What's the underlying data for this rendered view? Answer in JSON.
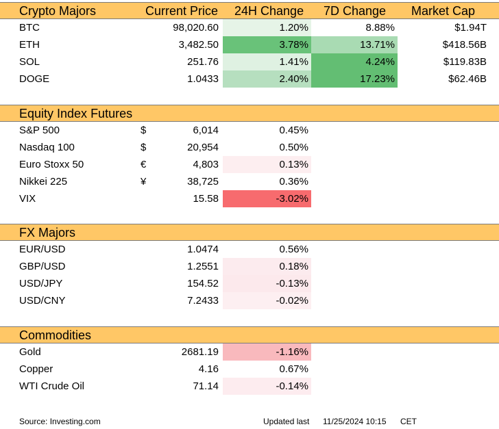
{
  "crypto": {
    "headers": {
      "name": "Crypto Majors",
      "price": "Current Price",
      "change24": "24H Change",
      "change7d": "7D Change",
      "mcap": "Market Cap"
    },
    "header_color": "#ffc766",
    "rows": [
      {
        "name": "BTC",
        "price": "98,020.60",
        "change24": "1.20%",
        "bg24": "#e6f4e7",
        "change7d": "8.88%",
        "bg7d": "#ffffff",
        "mcap": "$1.94T"
      },
      {
        "name": "ETH",
        "price": "3,482.50",
        "change24": "3.78%",
        "bg24": "#69c279",
        "change7d": "13.71%",
        "bg7d": "#a9dbb3",
        "mcap": "$418.56B"
      },
      {
        "name": "SOL",
        "price": "251.76",
        "change24": "1.41%",
        "bg24": "#dff1e2",
        "change7d": "4.24%",
        "bg7d": "#63be73",
        "mcap": "$119.83B"
      },
      {
        "name": "DOGE",
        "price": "1.0433",
        "change24": "2.40%",
        "bg24": "#b6dfbf",
        "change7d": "17.23%",
        "bg7d": "#63be73",
        "mcap": "$62.46B"
      }
    ]
  },
  "equity": {
    "title": "Equity Index Futures",
    "rows": [
      {
        "name": "S&P 500",
        "currency": "$",
        "price": "6,014",
        "change": "0.45%",
        "bg": "#ffffff"
      },
      {
        "name": "Nasdaq 100",
        "currency": "$",
        "price": "20,954",
        "change": "0.50%",
        "bg": "#ffffff"
      },
      {
        "name": "Euro Stoxx 50",
        "currency": "€",
        "price": "4,803",
        "change": "0.13%",
        "bg": "#fdeef0"
      },
      {
        "name": "Nikkei 225",
        "currency": "¥",
        "price": "38,725",
        "change": "0.36%",
        "bg": "#ffffff"
      },
      {
        "name": "VIX",
        "currency": "",
        "price": "15.58",
        "change": "-3.02%",
        "bg": "#f76b6e"
      }
    ]
  },
  "fx": {
    "title": "FX Majors",
    "rows": [
      {
        "name": "EUR/USD",
        "price": "1.0474",
        "change": "0.56%",
        "bg": "#ffffff"
      },
      {
        "name": "GBP/USD",
        "price": "1.2551",
        "change": "0.18%",
        "bg": "#fcebee"
      },
      {
        "name": "USD/JPY",
        "price": "154.52",
        "change": "-0.13%",
        "bg": "#fce9ec"
      },
      {
        "name": "USD/CNY",
        "price": "7.2433",
        "change": "-0.02%",
        "bg": "#fdeff1"
      }
    ]
  },
  "commodities": {
    "title": "Commodities",
    "rows": [
      {
        "name": "Gold",
        "price": "2681.19",
        "change": "-1.16%",
        "bg": "#f9b9bd"
      },
      {
        "name": "Copper",
        "price": "4.16",
        "change": "0.67%",
        "bg": "#ffffff"
      },
      {
        "name": "WTI Crude Oil",
        "price": "71.14",
        "change": "-0.14%",
        "bg": "#fdecef"
      }
    ]
  },
  "footer": {
    "source": "Source: Investing.com",
    "updated_label": "Updated last",
    "timestamp": "11/25/2024 10:15",
    "timezone": "CET"
  }
}
